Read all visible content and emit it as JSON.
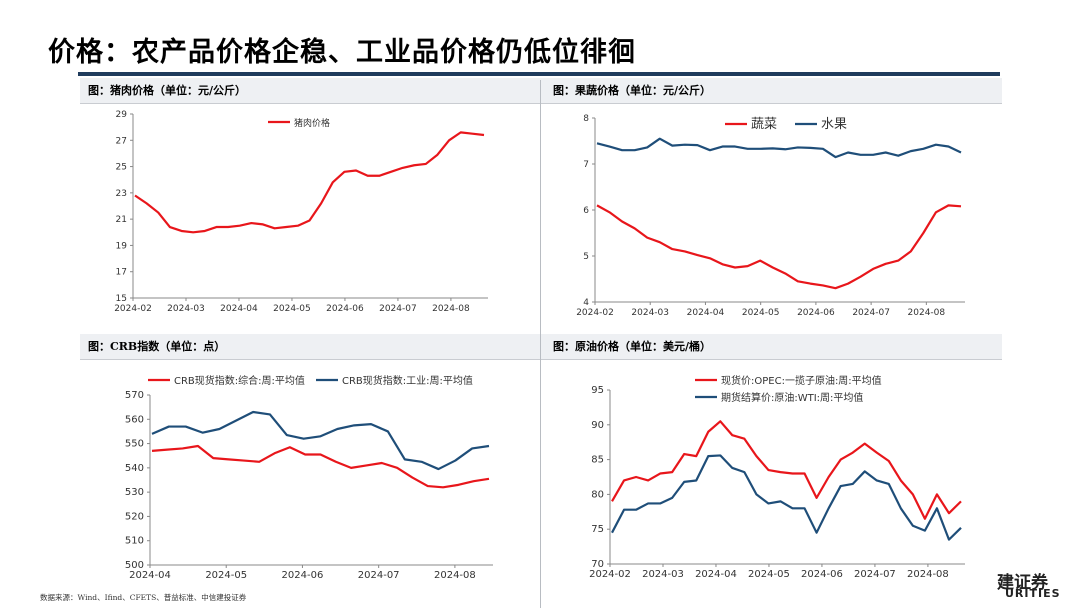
{
  "title": "价格：农产品价格企稳、工业品价格仍低位徘徊",
  "footer": {
    "source": "数据来源：Wind、Ifind、CFETS、普益标准、中信建投证券",
    "logo_text": "建证券",
    "logo_sub": "URITIES"
  },
  "panels": [
    {
      "header": "图：猪肉价格（单位：元/公斤）"
    },
    {
      "header": "图：果蔬价格（单位：元/公斤）"
    },
    {
      "header": "图：CRB指数（单位：点）"
    },
    {
      "header": "图：原油价格（单位：美元/桶）"
    }
  ],
  "colors": {
    "red": "#e8161b",
    "blue": "#1f4e79",
    "title_bar": "#1f3b5c"
  },
  "chart_data": [
    {
      "type": "line",
      "x_ticks": [
        "2024-02",
        "2024-03",
        "2024-04",
        "2024-05",
        "2024-06",
        "2024-07",
        "2024-08"
      ],
      "ylim": [
        15,
        29
      ],
      "y_ticks": [
        15,
        17,
        19,
        21,
        23,
        25,
        27,
        29
      ],
      "grid": false,
      "legend_position": "top-center",
      "series": [
        {
          "name": "猪肉价格",
          "color": "#e8161b",
          "values": [
            22.8,
            22.2,
            21.5,
            20.4,
            20.1,
            20.0,
            20.1,
            20.4,
            20.4,
            20.5,
            20.7,
            20.6,
            20.3,
            20.4,
            20.5,
            20.9,
            22.2,
            23.8,
            24.6,
            24.7,
            24.3,
            24.3,
            24.6,
            24.9,
            25.1,
            25.2,
            25.9,
            27.0,
            27.6,
            27.5,
            27.4
          ]
        }
      ]
    },
    {
      "type": "line",
      "x_ticks": [
        "2024-02",
        "2024-03",
        "2024-04",
        "2024-05",
        "2024-06",
        "2024-07",
        "2024-08"
      ],
      "ylim": [
        4,
        8
      ],
      "y_ticks": [
        4,
        5,
        6,
        7,
        8
      ],
      "grid": false,
      "legend_position": "top-center",
      "series": [
        {
          "name": "蔬菜",
          "color": "#e8161b",
          "values": [
            6.1,
            5.95,
            5.75,
            5.6,
            5.4,
            5.3,
            5.15,
            5.1,
            5.02,
            4.95,
            4.82,
            4.75,
            4.78,
            4.9,
            4.75,
            4.62,
            4.45,
            4.4,
            4.36,
            4.3,
            4.4,
            4.55,
            4.72,
            4.83,
            4.9,
            5.1,
            5.5,
            5.95,
            6.1,
            6.08
          ]
        },
        {
          "name": "水果",
          "color": "#1f4e79",
          "values": [
            7.45,
            7.38,
            7.3,
            7.3,
            7.36,
            7.55,
            7.4,
            7.42,
            7.41,
            7.3,
            7.38,
            7.38,
            7.33,
            7.33,
            7.34,
            7.32,
            7.36,
            7.35,
            7.33,
            7.15,
            7.25,
            7.2,
            7.2,
            7.25,
            7.18,
            7.28,
            7.33,
            7.42,
            7.38,
            7.25
          ]
        }
      ]
    },
    {
      "type": "line",
      "x_ticks": [
        "2024-04",
        "2024-05",
        "2024-06",
        "2024-07",
        "2024-08"
      ],
      "ylim": [
        500,
        570
      ],
      "y_ticks": [
        500,
        510,
        520,
        530,
        540,
        550,
        560,
        570
      ],
      "grid": false,
      "legend_position": "top",
      "series": [
        {
          "name": "CRB现货指数:综合:周:平均值",
          "color": "#e8161b",
          "values": [
            547.0,
            547.5,
            548.0,
            549.0,
            544.0,
            543.5,
            543.0,
            542.5,
            546.0,
            548.5,
            545.5,
            545.5,
            542.5,
            540.0,
            541.0,
            542.0,
            540.0,
            536.0,
            532.5,
            532.0,
            533.0,
            534.5,
            535.5
          ]
        },
        {
          "name": "CRB现货指数:工业:周:平均值",
          "color": "#1f4e79",
          "values": [
            554.0,
            557.0,
            557.0,
            554.5,
            556.0,
            559.5,
            563.0,
            562.0,
            553.5,
            552.0,
            553.0,
            556.0,
            557.5,
            558.0,
            555.0,
            543.5,
            542.5,
            539.5,
            543.0,
            548.0,
            549.0
          ]
        }
      ]
    },
    {
      "type": "line",
      "x_ticks": [
        "2024-02",
        "2024-03",
        "2024-04",
        "2024-05",
        "2024-06",
        "2024-07",
        "2024-08"
      ],
      "ylim": [
        70,
        95
      ],
      "y_ticks": [
        70,
        75,
        80,
        85,
        90,
        95
      ],
      "grid": false,
      "legend_position": "top-left",
      "series": [
        {
          "name": "现货价:OPEC:一揽子原油:周:平均值",
          "color": "#e8161b",
          "values": [
            79.0,
            82.0,
            82.5,
            82.0,
            83.0,
            83.2,
            85.8,
            85.5,
            89.0,
            90.5,
            88.5,
            88.0,
            85.5,
            83.5,
            83.2,
            83.0,
            83.0,
            79.5,
            82.5,
            85.0,
            86.0,
            87.3,
            86.0,
            84.8,
            82.0,
            80.0,
            76.5,
            80.0,
            77.3,
            79.0
          ]
        },
        {
          "name": "期货结算价:原油:WTI:周:平均值",
          "color": "#1f4e79",
          "values": [
            74.5,
            77.8,
            77.8,
            78.7,
            78.7,
            79.5,
            81.8,
            82.0,
            85.5,
            85.6,
            83.8,
            83.2,
            80.0,
            78.7,
            79.0,
            78.0,
            78.0,
            74.5,
            78.0,
            81.2,
            81.5,
            83.3,
            82.0,
            81.5,
            78.0,
            75.5,
            74.8,
            78.0,
            73.5,
            75.2
          ]
        }
      ]
    }
  ]
}
